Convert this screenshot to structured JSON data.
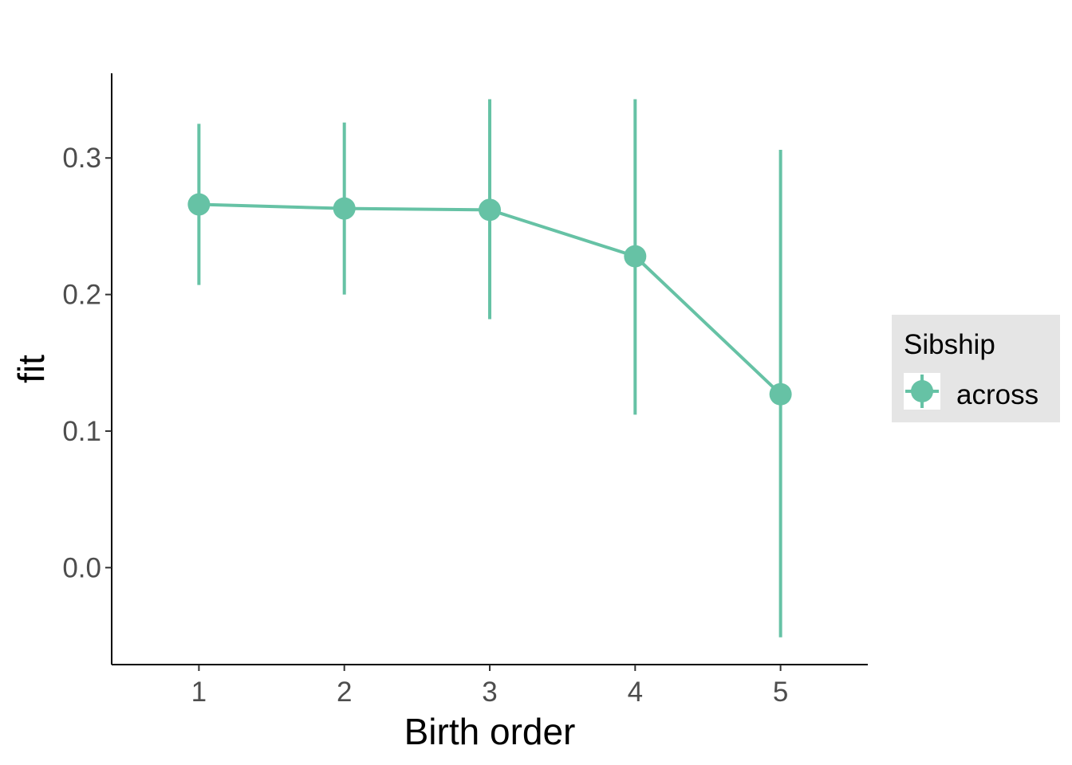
{
  "chart_data": {
    "type": "line",
    "title": "",
    "xlabel": "Birth order",
    "ylabel": "fit",
    "x": [
      1,
      2,
      3,
      4,
      5
    ],
    "x_tick_labels": [
      "1",
      "2",
      "3",
      "4",
      "5"
    ],
    "xlim": [
      0.4,
      5.6
    ],
    "y_ticks": [
      0.0,
      0.1,
      0.2,
      0.3
    ],
    "y_tick_labels": [
      "0.0",
      "0.1",
      "0.2",
      "0.3"
    ],
    "ylim": [
      -0.071,
      0.362
    ],
    "grid": false,
    "series": [
      {
        "name": "across",
        "color": "#66c2a5",
        "values": [
          0.266,
          0.263,
          0.262,
          0.228,
          0.127
        ],
        "lower": [
          0.207,
          0.2,
          0.182,
          0.112,
          -0.051
        ],
        "upper": [
          0.325,
          0.326,
          0.343,
          0.343,
          0.306
        ]
      }
    ],
    "legend": {
      "title": "Sibship",
      "placement": "right",
      "entries": [
        "across"
      ]
    }
  }
}
